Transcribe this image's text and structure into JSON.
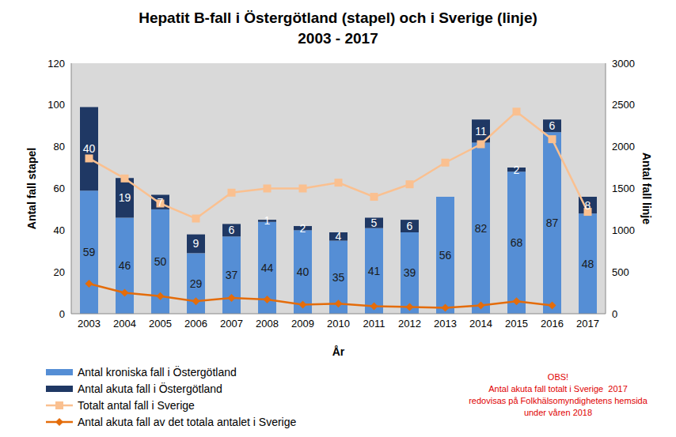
{
  "chart_data": {
    "type": "bar",
    "title": "Hepatit B-fall i Östergötland (stapel) och i Sverige (linje)",
    "subtitle": "2003 - 2017",
    "x_label": "År",
    "y_label": "Antal fall stapel",
    "y2_label": "Antal fall linje",
    "categories": [
      "2003",
      "2004",
      "2005",
      "2006",
      "2007",
      "2008",
      "2009",
      "2010",
      "2011",
      "2012",
      "2013",
      "2014",
      "2015",
      "2016",
      "2017"
    ],
    "stacked": true,
    "grid": false,
    "legend": "bottom-left",
    "ylim": [
      0,
      120
    ],
    "yticks": [
      0,
      20,
      40,
      60,
      80,
      100,
      120
    ],
    "y2lim": [
      0,
      3000
    ],
    "y2ticks": [
      0,
      500,
      1000,
      1500,
      2000,
      2500,
      3000
    ],
    "series": [
      {
        "name": "Antal kroniska fall i Östergötland",
        "type": "bar",
        "color": "#558ed5",
        "data_labels": true,
        "values": [
          59,
          46,
          50,
          29,
          37,
          44,
          40,
          35,
          41,
          39,
          56,
          82,
          68,
          87,
          48
        ]
      },
      {
        "name": "Antal akuta fall i Östergötland",
        "type": "bar",
        "color": "#1f3864",
        "data_labels": true,
        "values": [
          40,
          19,
          7,
          9,
          6,
          1,
          2,
          4,
          5,
          6,
          0,
          11,
          2,
          6,
          8
        ]
      },
      {
        "name": "Totalt antal fall i Sverige",
        "type": "line",
        "axis": "y2",
        "color": "#fac090",
        "marker": "square",
        "values": [
          1860,
          1620,
          1320,
          1140,
          1450,
          1500,
          1500,
          1570,
          1400,
          1550,
          1810,
          2030,
          2420,
          2090,
          1220
        ]
      },
      {
        "name": "Antal akuta fall av det totala antalet i Sverige",
        "type": "line",
        "axis": "y2",
        "color": "#e46c0a",
        "marker": "diamond",
        "values": [
          360,
          250,
          210,
          150,
          190,
          170,
          110,
          120,
          90,
          80,
          70,
          100,
          150,
          100,
          null
        ]
      }
    ],
    "annotation": [
      "OBS!",
      "Antal akuta fall totalt i Sverige  2017",
      "redovisas på Folkhälsomyndighetens hemsida",
      "under våren 2018"
    ]
  }
}
